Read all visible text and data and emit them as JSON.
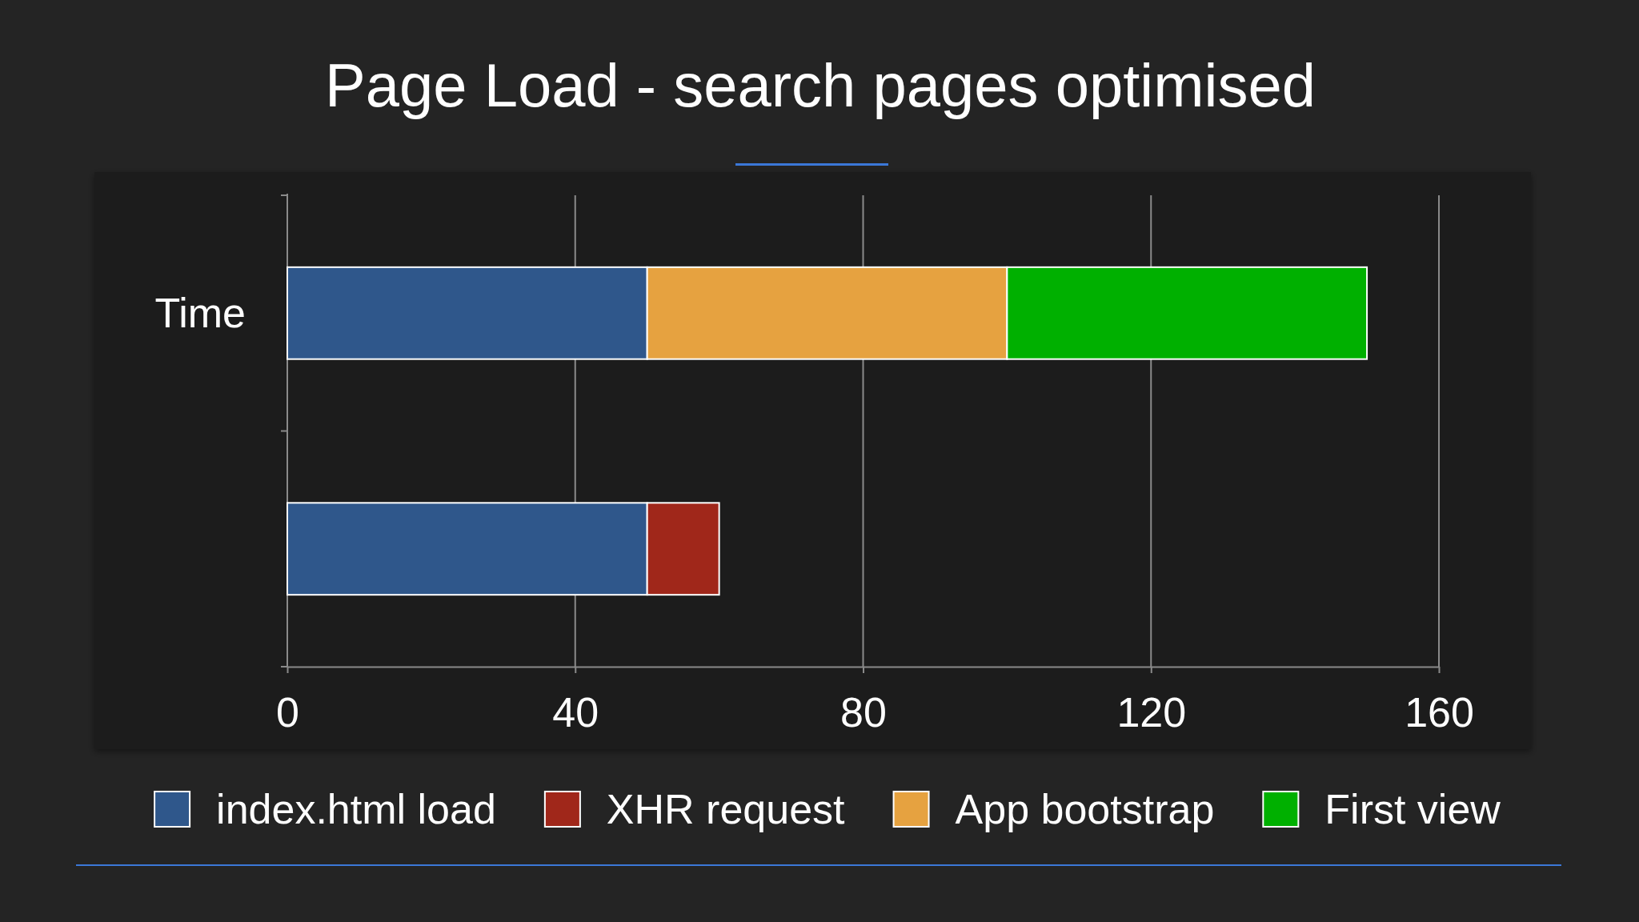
{
  "chart_data": {
    "type": "bar",
    "orientation": "horizontal",
    "stacked": true,
    "title": "Page Load - search pages optimised",
    "categories": [
      "Time",
      null
    ],
    "series": [
      {
        "name": "index.html load",
        "color": "#2f578b",
        "values": [
          50,
          50
        ]
      },
      {
        "name": "XHR request",
        "color": "#a0271a",
        "values": [
          null,
          10
        ]
      },
      {
        "name": "App bootstrap",
        "color": "#e6a240",
        "values": [
          50,
          null
        ]
      },
      {
        "name": "First view",
        "color": "#00b000",
        "values": [
          50,
          null
        ]
      }
    ],
    "xlim": [
      0,
      160
    ],
    "xticks": [
      0,
      40,
      80,
      120,
      160
    ],
    "grid": "x",
    "legend": "bottom"
  }
}
